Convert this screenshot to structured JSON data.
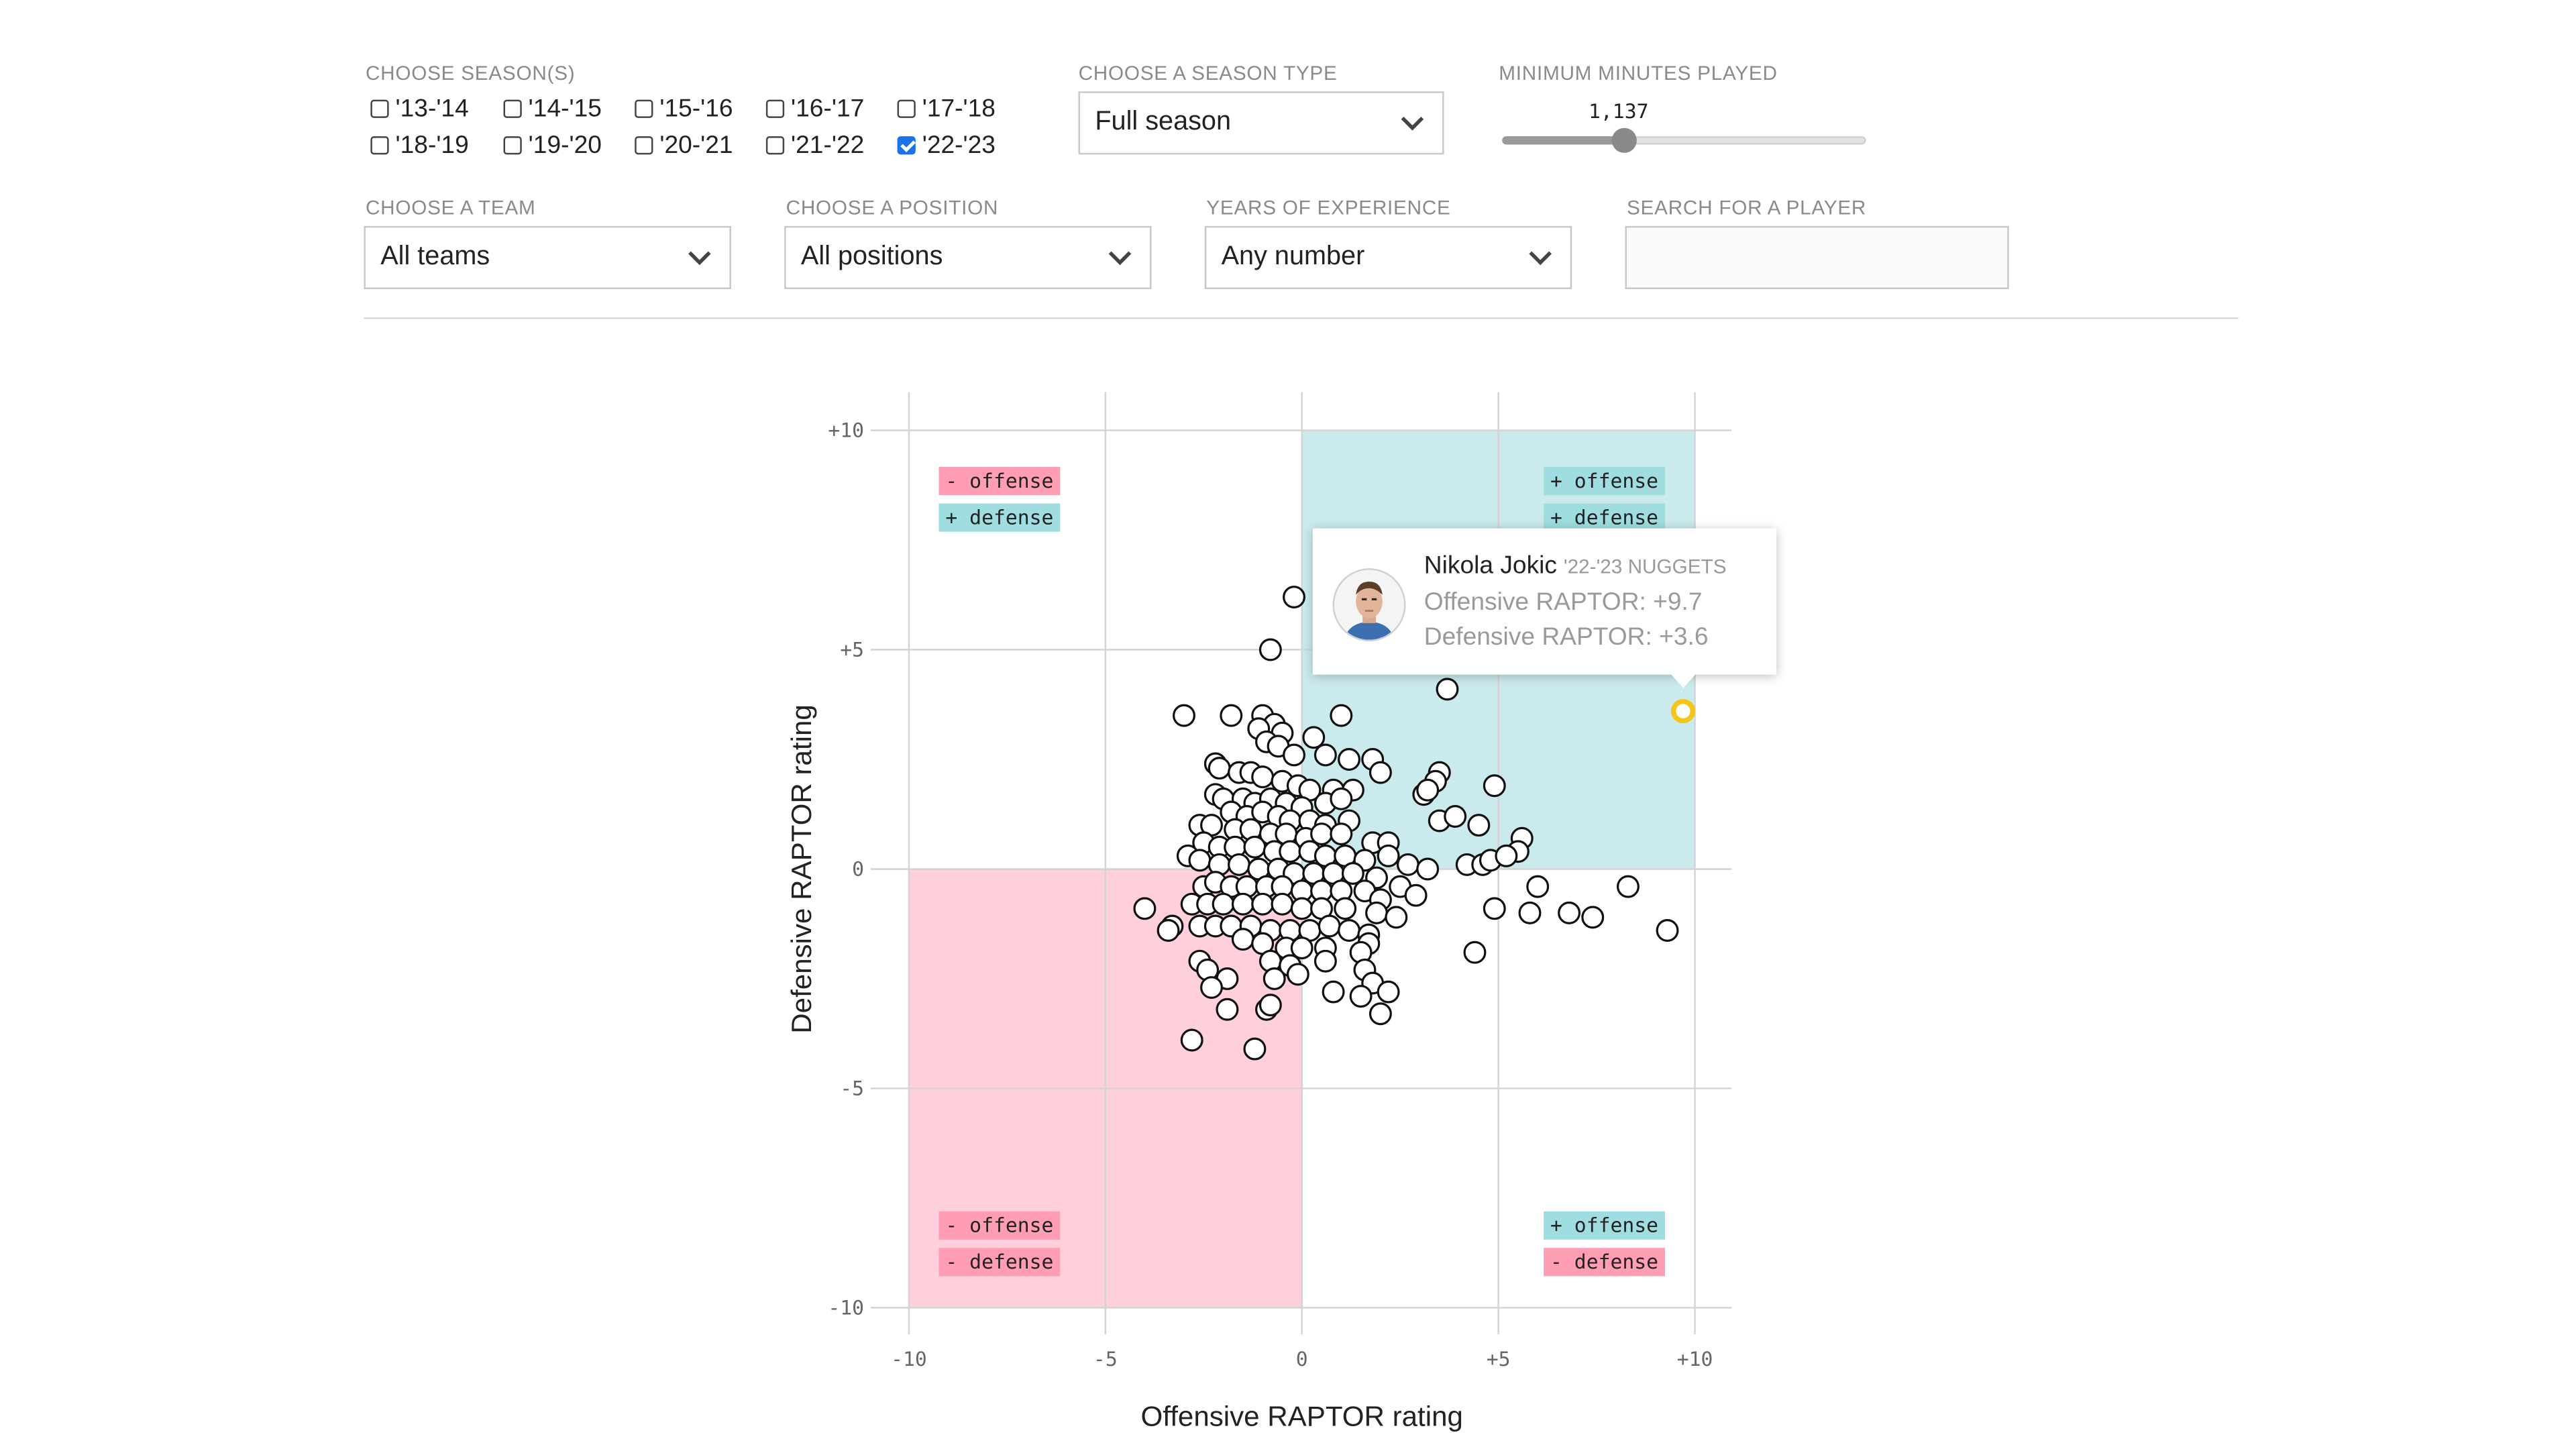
{
  "filters": {
    "season_label": "CHOOSE SEASON(S)",
    "seasons": [
      {
        "label": "'13-'14",
        "checked": false
      },
      {
        "label": "'14-'15",
        "checked": false
      },
      {
        "label": "'15-'16",
        "checked": false
      },
      {
        "label": "'16-'17",
        "checked": false
      },
      {
        "label": "'17-'18",
        "checked": false
      },
      {
        "label": "'18-'19",
        "checked": false
      },
      {
        "label": "'19-'20",
        "checked": false
      },
      {
        "label": "'20-'21",
        "checked": false
      },
      {
        "label": "'21-'22",
        "checked": false
      },
      {
        "label": "'22-'23",
        "checked": true
      }
    ],
    "season_type_label": "CHOOSE A SEASON TYPE",
    "season_type_value": "Full season",
    "minutes_label": "MINIMUM MINUTES PLAYED",
    "minutes_value": "1,137",
    "minutes_fraction": 0.34,
    "team_label": "CHOOSE A TEAM",
    "team_value": "All teams",
    "position_label": "CHOOSE A POSITION",
    "position_value": "All positions",
    "experience_label": "YEARS OF EXPERIENCE",
    "experience_value": "Any number",
    "search_label": "SEARCH FOR A PLAYER",
    "search_value": ""
  },
  "tooltip": {
    "name": "Nikola Jokic",
    "team": "'22-'23 NUGGETS",
    "offense": "Offensive RAPTOR: +9.7",
    "defense": "Defensive RAPTOR: +3.6"
  },
  "colors": {
    "positive": "#cbeaed",
    "negative": "#ffcfdc",
    "highlight": "#f5c518",
    "label_positive": "#9fdde0",
    "label_negative": "#ff9db4"
  },
  "chart_data": {
    "type": "scatter",
    "xlabel": "Offensive RAPTOR rating",
    "ylabel": "Defensive RAPTOR rating",
    "xlim": [
      -10,
      10
    ],
    "ylim": [
      -10,
      10
    ],
    "x_ticks": [
      "-10",
      "-5",
      "0",
      "+5",
      "+10"
    ],
    "y_ticks": [
      "+10",
      "+5",
      "0",
      "-5",
      "-10"
    ],
    "quadrant_labels": {
      "top_left": [
        "- offense",
        "+ defense"
      ],
      "top_right": [
        "+ offense",
        "+ defense"
      ],
      "bottom_left": [
        "- offense",
        "- defense"
      ],
      "bottom_right": [
        "+ offense",
        "- defense"
      ]
    },
    "highlight": {
      "x": 9.7,
      "y": 3.6
    },
    "points": [
      [
        -0.2,
        6.2
      ],
      [
        -0.8,
        5.0
      ],
      [
        3.7,
        4.1
      ],
      [
        -3.0,
        3.5
      ],
      [
        -1.8,
        3.5
      ],
      [
        -1.0,
        3.5
      ],
      [
        -0.7,
        3.3
      ],
      [
        -0.5,
        3.1
      ],
      [
        0.3,
        3.0
      ],
      [
        1.0,
        3.5
      ],
      [
        -1.1,
        3.2
      ],
      [
        -0.9,
        2.9
      ],
      [
        -0.6,
        2.8
      ],
      [
        -0.2,
        2.6
      ],
      [
        0.6,
        2.6
      ],
      [
        1.2,
        2.5
      ],
      [
        1.8,
        2.5
      ],
      [
        3.5,
        2.2
      ],
      [
        3.4,
        2.0
      ],
      [
        2.0,
        2.2
      ],
      [
        -2.2,
        2.4
      ],
      [
        -2.1,
        2.3
      ],
      [
        -1.6,
        2.2
      ],
      [
        -1.3,
        2.2
      ],
      [
        -1.0,
        2.1
      ],
      [
        -0.5,
        2.0
      ],
      [
        -0.1,
        1.9
      ],
      [
        0.2,
        1.8
      ],
      [
        0.8,
        1.8
      ],
      [
        1.3,
        1.8
      ],
      [
        4.9,
        1.9
      ],
      [
        3.1,
        1.7
      ],
      [
        3.2,
        1.8
      ],
      [
        -2.2,
        1.7
      ],
      [
        -2.0,
        1.6
      ],
      [
        -1.5,
        1.6
      ],
      [
        -1.2,
        1.5
      ],
      [
        -0.8,
        1.6
      ],
      [
        -0.4,
        1.5
      ],
      [
        0.0,
        1.4
      ],
      [
        0.6,
        1.5
      ],
      [
        1.0,
        1.6
      ],
      [
        -1.8,
        1.3
      ],
      [
        -1.4,
        1.2
      ],
      [
        -1.0,
        1.3
      ],
      [
        -0.6,
        1.2
      ],
      [
        -0.3,
        1.1
      ],
      [
        0.2,
        1.1
      ],
      [
        0.6,
        1.0
      ],
      [
        1.2,
        1.1
      ],
      [
        3.5,
        1.1
      ],
      [
        3.9,
        1.2
      ],
      [
        4.5,
        1.0
      ],
      [
        -2.6,
        1.0
      ],
      [
        -2.3,
        1.0
      ],
      [
        -1.7,
        0.9
      ],
      [
        -1.3,
        0.9
      ],
      [
        -0.8,
        0.8
      ],
      [
        -0.4,
        0.8
      ],
      [
        0.1,
        0.7
      ],
      [
        0.5,
        0.8
      ],
      [
        1.0,
        0.8
      ],
      [
        1.8,
        0.6
      ],
      [
        2.2,
        0.6
      ],
      [
        5.6,
        0.7
      ],
      [
        5.5,
        0.4
      ],
      [
        -2.5,
        0.6
      ],
      [
        -2.1,
        0.5
      ],
      [
        -1.7,
        0.5
      ],
      [
        -1.2,
        0.5
      ],
      [
        -0.7,
        0.4
      ],
      [
        -0.3,
        0.4
      ],
      [
        0.2,
        0.4
      ],
      [
        0.6,
        0.3
      ],
      [
        1.1,
        0.3
      ],
      [
        1.6,
        0.2
      ],
      [
        2.2,
        0.3
      ],
      [
        2.7,
        0.1
      ],
      [
        3.2,
        0.0
      ],
      [
        4.2,
        0.1
      ],
      [
        4.6,
        0.1
      ],
      [
        4.8,
        0.2
      ],
      [
        5.2,
        0.3
      ],
      [
        -2.9,
        0.3
      ],
      [
        -2.6,
        0.2
      ],
      [
        -2.1,
        0.1
      ],
      [
        -1.6,
        0.1
      ],
      [
        -1.1,
        0.0
      ],
      [
        -0.6,
        0.0
      ],
      [
        -0.2,
        -0.1
      ],
      [
        0.3,
        -0.1
      ],
      [
        0.8,
        -0.1
      ],
      [
        1.3,
        -0.1
      ],
      [
        1.9,
        -0.2
      ],
      [
        2.5,
        -0.4
      ],
      [
        6.0,
        -0.4
      ],
      [
        8.3,
        -0.4
      ],
      [
        -2.5,
        -0.4
      ],
      [
        -2.2,
        -0.3
      ],
      [
        -1.8,
        -0.4
      ],
      [
        -1.4,
        -0.4
      ],
      [
        -0.9,
        -0.4
      ],
      [
        -0.5,
        -0.4
      ],
      [
        0.0,
        -0.5
      ],
      [
        0.5,
        -0.5
      ],
      [
        1.0,
        -0.5
      ],
      [
        1.6,
        -0.5
      ],
      [
        2.0,
        -0.7
      ],
      [
        2.9,
        -0.6
      ],
      [
        -2.8,
        -0.8
      ],
      [
        -2.4,
        -0.8
      ],
      [
        -2.0,
        -0.8
      ],
      [
        -1.5,
        -0.8
      ],
      [
        -1.0,
        -0.8
      ],
      [
        -0.5,
        -0.8
      ],
      [
        0.0,
        -0.9
      ],
      [
        0.5,
        -0.9
      ],
      [
        1.1,
        -0.9
      ],
      [
        1.9,
        -1.0
      ],
      [
        2.4,
        -1.1
      ],
      [
        -4.0,
        -0.9
      ],
      [
        4.9,
        -0.9
      ],
      [
        5.8,
        -1.0
      ],
      [
        6.8,
        -1.0
      ],
      [
        7.4,
        -1.1
      ],
      [
        9.3,
        -1.4
      ],
      [
        -3.3,
        -1.3
      ],
      [
        -3.4,
        -1.4
      ],
      [
        -2.6,
        -1.3
      ],
      [
        -2.2,
        -1.3
      ],
      [
        -1.8,
        -1.3
      ],
      [
        -1.3,
        -1.3
      ],
      [
        -0.8,
        -1.4
      ],
      [
        -0.3,
        -1.4
      ],
      [
        0.2,
        -1.4
      ],
      [
        0.7,
        -1.3
      ],
      [
        1.2,
        -1.4
      ],
      [
        1.7,
        -1.5
      ],
      [
        -1.5,
        -1.6
      ],
      [
        -1.0,
        -1.7
      ],
      [
        -0.4,
        -1.8
      ],
      [
        0.0,
        -1.8
      ],
      [
        0.6,
        -1.8
      ],
      [
        1.7,
        -1.7
      ],
      [
        1.5,
        -1.9
      ],
      [
        4.4,
        -1.9
      ],
      [
        -2.6,
        -2.1
      ],
      [
        -2.4,
        -2.3
      ],
      [
        -0.8,
        -2.1
      ],
      [
        -0.3,
        -2.2
      ],
      [
        0.6,
        -2.1
      ],
      [
        1.6,
        -2.3
      ],
      [
        -1.9,
        -2.5
      ],
      [
        -0.7,
        -2.5
      ],
      [
        -0.1,
        -2.4
      ],
      [
        1.8,
        -2.6
      ],
      [
        -2.3,
        -2.7
      ],
      [
        0.8,
        -2.8
      ],
      [
        1.5,
        -2.9
      ],
      [
        2.2,
        -2.8
      ],
      [
        -1.9,
        -3.2
      ],
      [
        -0.9,
        -3.2
      ],
      [
        -0.8,
        -3.1
      ],
      [
        2.0,
        -3.3
      ],
      [
        -2.8,
        -3.9
      ],
      [
        -1.2,
        -4.1
      ]
    ]
  }
}
